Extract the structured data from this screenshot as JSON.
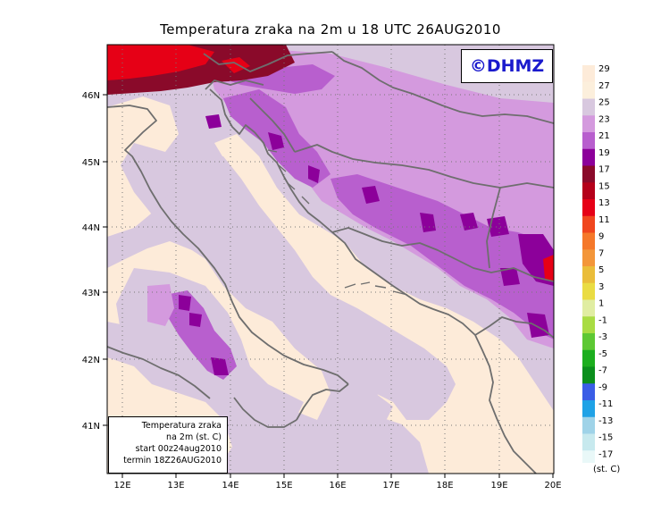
{
  "title": "Temperatura zraka na 2m u 18 UTC 26AUG2010",
  "watermark": "©DHMZ",
  "info_box": {
    "line1": "Temperatura zraka",
    "line2": "na 2m (st. C)",
    "line3": "start 00z24aug2010",
    "line4": "termin 18Z26AUG2010"
  },
  "x_ticks": [
    "12E",
    "13E",
    "14E",
    "15E",
    "16E",
    "17E",
    "18E",
    "19E",
    "20E"
  ],
  "y_ticks": [
    "46N",
    "45N",
    "44N",
    "43N",
    "42N",
    "41N"
  ],
  "legend": {
    "units": "(st. C)",
    "labels": [
      "29",
      "27",
      "25",
      "23",
      "21",
      "19",
      "17",
      "15",
      "13",
      "11",
      "9",
      "7",
      "5",
      "3",
      "1",
      "-1",
      "-3",
      "-5",
      "-7",
      "-9",
      "-11",
      "-13",
      "-15",
      "-17"
    ],
    "colors": [
      "#fdebd9",
      "#fcefdc",
      "#d8c8df",
      "#d49ade",
      "#b85fce",
      "#8c009a",
      "#8a0a2a",
      "#b5001a",
      "#e60016",
      "#f0461e",
      "#f5782a",
      "#f3963a",
      "#eabd3a",
      "#eadc43",
      "#e0eda2",
      "#a9dc43",
      "#5dc834",
      "#1cae1e",
      "#0b8f1c",
      "#3a5de6",
      "#1fa2e6",
      "#9fd3e8",
      "#c7e9ee",
      "#e9f8f8"
    ]
  },
  "colors": {
    "land_pale": "#fdebd9",
    "sea_lilac": "#d8c8df",
    "light_purple": "#d49ade",
    "purple": "#b85fce",
    "dark_purple": "#8c009a",
    "dark_red": "#8a0a2a",
    "red": "#e60016",
    "coastline": "#6e6e6e",
    "watermark": "#1a1acd"
  }
}
